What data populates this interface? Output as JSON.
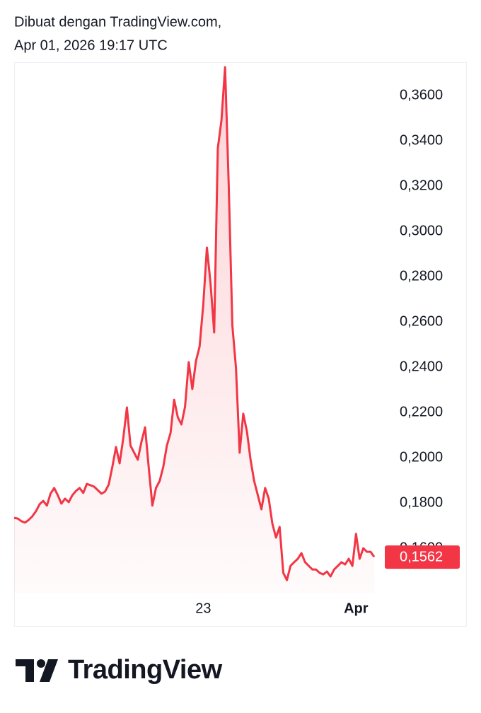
{
  "chart_data": {
    "type": "area",
    "title": "Dibuat dengan TradingView.com,",
    "subtitle": "Apr 01, 2026 19:17 UTC",
    "brand": "TradingView",
    "categories": [
      null,
      null,
      null,
      null,
      null,
      null,
      null,
      null,
      null,
      null,
      null,
      null,
      null,
      null,
      null,
      null,
      null,
      null,
      null,
      null,
      null,
      null,
      null,
      null,
      null,
      null,
      null,
      null,
      null,
      null,
      null,
      null,
      null,
      null,
      null,
      null,
      null,
      null,
      null,
      null,
      null,
      null,
      null,
      null,
      null,
      null,
      null,
      null,
      null,
      null,
      null,
      null,
      "23",
      null,
      null,
      null,
      null,
      null,
      null,
      null,
      null,
      null,
      null,
      null,
      null,
      null,
      null,
      null,
      null,
      null,
      null,
      null,
      null,
      null,
      null,
      null,
      null,
      null,
      null,
      null,
      null,
      null,
      null,
      null,
      null,
      null,
      null,
      null,
      null,
      null,
      null,
      null,
      null,
      null,
      "Apr",
      null,
      null,
      null,
      null,
      null
    ],
    "series": [
      {
        "color": "#f23645",
        "values": [
          0.1734,
          0.1731,
          0.1719,
          0.1713,
          0.1725,
          0.1741,
          0.1763,
          0.1794,
          0.1809,
          0.1788,
          0.1841,
          0.1866,
          0.1834,
          0.1797,
          0.1819,
          0.1803,
          0.1834,
          0.1853,
          0.1866,
          0.1844,
          0.1884,
          0.1878,
          0.1872,
          0.1856,
          0.1841,
          0.185,
          0.1881,
          0.1959,
          0.2047,
          0.1975,
          0.2084,
          0.2222,
          0.2053,
          0.2022,
          0.1991,
          0.2069,
          0.2134,
          0.1959,
          0.1788,
          0.1866,
          0.1897,
          0.1959,
          0.2053,
          0.2109,
          0.2256,
          0.2178,
          0.2147,
          0.2225,
          0.2422,
          0.2303,
          0.2428,
          0.2491,
          0.2678,
          0.2928,
          0.2772,
          0.2553,
          0.3366,
          0.3491,
          0.3725,
          0.3209,
          0.2584,
          0.2397,
          0.2022,
          0.2194,
          0.2116,
          0.1991,
          0.1897,
          0.1834,
          0.1772,
          0.1866,
          0.1819,
          0.1709,
          0.1647,
          0.1694,
          0.1491,
          0.1459,
          0.1522,
          0.1538,
          0.1553,
          0.1578,
          0.1538,
          0.1522,
          0.1506,
          0.1506,
          0.1491,
          0.1484,
          0.1497,
          0.1475,
          0.1506,
          0.1522,
          0.1538,
          0.1528,
          0.1553,
          0.1522,
          0.1663,
          0.1553,
          0.16,
          0.1584,
          0.1584,
          0.1562
        ],
        "value_labels": [
          null,
          null,
          null,
          null,
          null,
          null,
          null,
          null,
          null,
          null,
          null,
          null,
          null,
          null,
          null,
          null,
          null,
          null,
          null,
          null,
          null,
          null,
          null,
          null,
          null,
          null,
          null,
          null,
          null,
          null,
          null,
          null,
          null,
          null,
          null,
          null,
          null,
          null,
          null,
          null,
          null,
          null,
          null,
          null,
          null,
          null,
          null,
          null,
          null,
          null,
          null,
          null,
          null,
          null,
          null,
          null,
          null,
          null,
          null,
          null,
          null,
          null,
          null,
          null,
          null,
          null,
          null,
          null,
          null,
          null,
          null,
          null,
          null,
          null,
          null,
          null,
          null,
          null,
          null,
          null,
          null,
          null,
          null,
          null,
          null,
          null,
          null,
          null,
          null,
          null,
          null,
          null,
          null,
          null,
          null,
          null,
          null,
          null,
          null,
          "0,1562"
        ]
      }
    ],
    "ylim": [
      0.14,
      0.375
    ],
    "yticks": [
      {
        "value": 0.16,
        "label": "0,1600"
      },
      {
        "value": 0.18,
        "label": "0,1800"
      },
      {
        "value": 0.2,
        "label": "0,2000"
      },
      {
        "value": 0.22,
        "label": "0,2200"
      },
      {
        "value": 0.24,
        "label": "0,2400"
      },
      {
        "value": 0.26,
        "label": "0,2600"
      },
      {
        "value": 0.28,
        "label": "0,2800"
      },
      {
        "value": 0.3,
        "label": "0,3000"
      },
      {
        "value": 0.32,
        "label": "0,3200"
      },
      {
        "value": 0.34,
        "label": "0,3400"
      },
      {
        "value": 0.36,
        "label": "0,3600"
      }
    ],
    "grid": false
  }
}
